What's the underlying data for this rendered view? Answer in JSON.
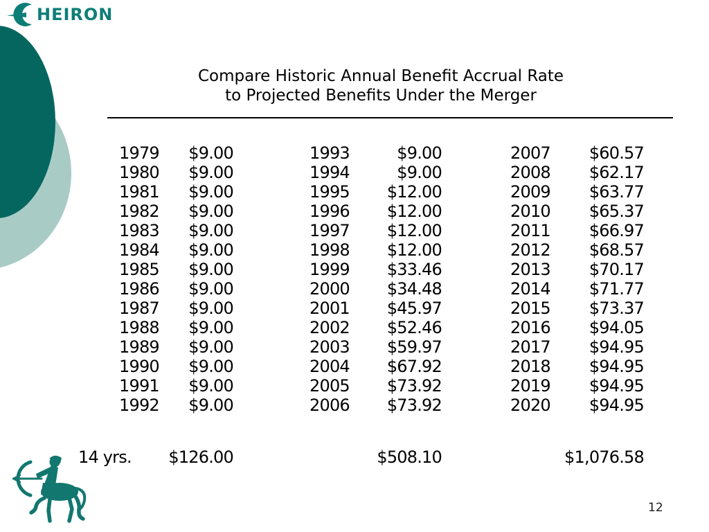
{
  "brand": {
    "c": "C",
    "rest": "HEIRON"
  },
  "title": {
    "line1": "Compare Historic Annual Benefit Accrual Rate",
    "line2": "to Projected Benefits Under the Merger"
  },
  "table": {
    "columns": [
      {
        "rows": [
          {
            "year": "1979",
            "value": "$9.00"
          },
          {
            "year": "1980",
            "value": "$9.00"
          },
          {
            "year": "1981",
            "value": "$9.00"
          },
          {
            "year": "1982",
            "value": "$9.00"
          },
          {
            "year": "1983",
            "value": "$9.00"
          },
          {
            "year": "1984",
            "value": "$9.00"
          },
          {
            "year": "1985",
            "value": "$9.00"
          },
          {
            "year": "1986",
            "value": "$9.00"
          },
          {
            "year": "1987",
            "value": "$9.00"
          },
          {
            "year": "1988",
            "value": "$9.00"
          },
          {
            "year": "1989",
            "value": "$9.00"
          },
          {
            "year": "1990",
            "value": "$9.00"
          },
          {
            "year": "1991",
            "value": "$9.00"
          },
          {
            "year": "1992",
            "value": "$9.00"
          }
        ]
      },
      {
        "rows": [
          {
            "year": "1993",
            "value": "$9.00"
          },
          {
            "year": "1994",
            "value": "$9.00"
          },
          {
            "year": "1995",
            "value": "$12.00"
          },
          {
            "year": "1996",
            "value": "$12.00"
          },
          {
            "year": "1997",
            "value": "$12.00"
          },
          {
            "year": "1998",
            "value": "$12.00"
          },
          {
            "year": "1999",
            "value": "$33.46"
          },
          {
            "year": "2000",
            "value": "$34.48"
          },
          {
            "year": "2001",
            "value": "$45.97"
          },
          {
            "year": "2002",
            "value": "$52.46"
          },
          {
            "year": "2003",
            "value": "$59.97"
          },
          {
            "year": "2004",
            "value": "$67.92"
          },
          {
            "year": "2005",
            "value": "$73.92"
          },
          {
            "year": "2006",
            "value": "$73.92"
          }
        ]
      },
      {
        "rows": [
          {
            "year": "2007",
            "value": "$60.57"
          },
          {
            "year": "2008",
            "value": "$62.17"
          },
          {
            "year": "2009",
            "value": "$63.77"
          },
          {
            "year": "2010",
            "value": "$65.37"
          },
          {
            "year": "2011",
            "value": "$66.97"
          },
          {
            "year": "2012",
            "value": "$68.57"
          },
          {
            "year": "2013",
            "value": "$70.17"
          },
          {
            "year": "2014",
            "value": "$71.77"
          },
          {
            "year": "2015",
            "value": "$73.37"
          },
          {
            "year": "2016",
            "value": "$94.05"
          },
          {
            "year": "2017",
            "value": "$94.95"
          },
          {
            "year": "2018",
            "value": "$94.95"
          },
          {
            "year": "2019",
            "value": "$94.95"
          },
          {
            "year": "2020",
            "value": "$94.95"
          }
        ]
      }
    ],
    "totals": {
      "label": "14 yrs.",
      "col1": "$126.00",
      "col2": "$508.10",
      "col3": "$1,076.58"
    }
  },
  "page_number": "12",
  "colors": {
    "dark_circle": "#04665f",
    "light_circle": "#a9cbc6",
    "brand_teal": "#0d7e77"
  }
}
